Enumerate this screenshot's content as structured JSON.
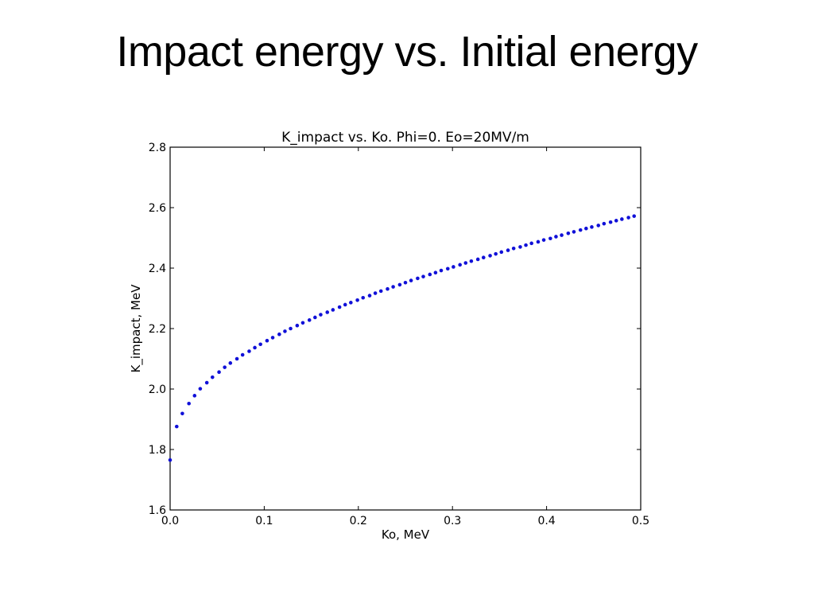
{
  "slide": {
    "title": "Impact energy vs. Initial energy"
  },
  "chart_data": {
    "type": "scatter",
    "title": "K_impact vs. Ko.  Phi=0. Eo=20MV/m",
    "xlabel": "Ko, MeV",
    "ylabel": "K_impact, MeV",
    "xlim": [
      0.0,
      0.5
    ],
    "ylim": [
      1.6,
      2.8
    ],
    "xticks": [
      "0.0",
      "0.1",
      "0.2",
      "0.3",
      "0.4",
      "0.5"
    ],
    "yticks": [
      "1.6",
      "1.8",
      "2.0",
      "2.2",
      "2.4",
      "2.6",
      "2.8"
    ],
    "grid": false,
    "marker_color": "#1010d8",
    "series": [
      {
        "x": [
          0.0,
          0.007,
          0.013,
          0.02,
          0.026,
          0.032,
          0.039,
          0.045,
          0.052,
          0.058,
          0.064,
          0.071,
          0.077,
          0.084,
          0.09,
          0.096,
          0.103,
          0.109,
          0.116,
          0.122,
          0.128,
          0.135,
          0.141,
          0.148,
          0.154,
          0.16,
          0.167,
          0.173,
          0.18,
          0.186,
          0.192,
          0.199,
          0.205,
          0.212,
          0.218,
          0.224,
          0.231,
          0.237,
          0.244,
          0.25,
          0.256,
          0.263,
          0.269,
          0.276,
          0.282,
          0.288,
          0.295,
          0.301,
          0.308,
          0.314,
          0.32,
          0.327,
          0.333,
          0.34,
          0.346,
          0.352,
          0.359,
          0.365,
          0.372,
          0.378,
          0.384,
          0.391,
          0.397,
          0.404,
          0.41,
          0.416,
          0.423,
          0.429,
          0.436,
          0.442,
          0.448,
          0.455,
          0.461,
          0.468,
          0.474,
          0.48,
          0.487,
          0.493
        ],
        "y": [
          1.765,
          1.876,
          1.919,
          1.952,
          1.978,
          2.001,
          2.021,
          2.039,
          2.056,
          2.072,
          2.086,
          2.1,
          2.113,
          2.125,
          2.137,
          2.148,
          2.16,
          2.17,
          2.181,
          2.191,
          2.2,
          2.21,
          2.219,
          2.228,
          2.237,
          2.246,
          2.254,
          2.262,
          2.271,
          2.279,
          2.286,
          2.294,
          2.302,
          2.309,
          2.317,
          2.324,
          2.331,
          2.338,
          2.345,
          2.352,
          2.359,
          2.366,
          2.372,
          2.379,
          2.385,
          2.392,
          2.398,
          2.404,
          2.411,
          2.417,
          2.423,
          2.429,
          2.435,
          2.441,
          2.447,
          2.453,
          2.459,
          2.465,
          2.47,
          2.476,
          2.482,
          2.487,
          2.493,
          2.498,
          2.504,
          2.509,
          2.515,
          2.52,
          2.526,
          2.531,
          2.536,
          2.541,
          2.547,
          2.552,
          2.557,
          2.562,
          2.567,
          2.572
        ]
      }
    ]
  }
}
